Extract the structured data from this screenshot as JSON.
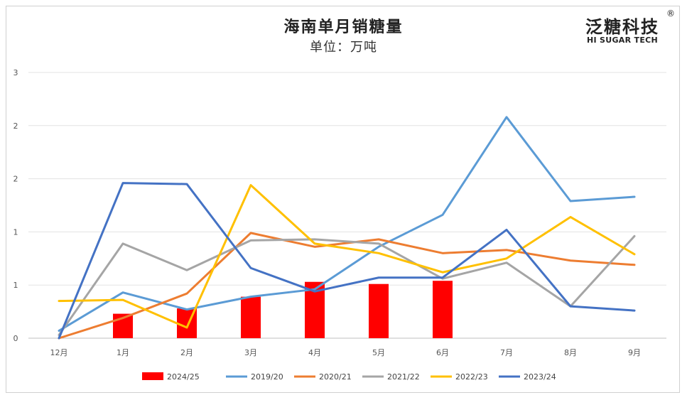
{
  "logo": {
    "cn": "泛糖科技",
    "en": "HI SUGAR TECH",
    "reg": "®"
  },
  "chart_data": {
    "type": "bar",
    "title": "海南单月销糖量",
    "subtitle": "单位：万吨",
    "categories": [
      "12月",
      "1月",
      "2月",
      "3月",
      "4月",
      "5月",
      "6月",
      "7月",
      "8月",
      "9月"
    ],
    "y_tick_labels": [
      "0",
      "1",
      "1",
      "2",
      "2",
      "3"
    ],
    "ylim": [
      0,
      2.5
    ],
    "grid": true,
    "legend_position": "bottom",
    "series": [
      {
        "name": "2024/25",
        "kind": "bar",
        "color": "#ff0000",
        "values": [
          null,
          0.23,
          0.28,
          0.39,
          0.53,
          0.51,
          0.54,
          null,
          null,
          null
        ]
      },
      {
        "name": "2019/20",
        "kind": "line",
        "color": "#5b9bd5",
        "values": [
          0.07,
          0.43,
          0.27,
          0.39,
          0.46,
          0.86,
          1.16,
          2.08,
          1.29,
          1.33
        ]
      },
      {
        "name": "2020/21",
        "kind": "line",
        "color": "#ed7d31",
        "values": [
          0.0,
          0.19,
          0.42,
          0.99,
          0.86,
          0.93,
          0.8,
          0.83,
          0.73,
          0.69
        ]
      },
      {
        "name": "2021/22",
        "kind": "line",
        "color": "#a5a5a5",
        "values": [
          0.03,
          0.89,
          0.64,
          0.92,
          0.93,
          0.89,
          0.56,
          0.71,
          0.3,
          0.96
        ]
      },
      {
        "name": "2022/23",
        "kind": "line",
        "color": "#ffc000",
        "values": [
          0.35,
          0.36,
          0.1,
          1.44,
          0.89,
          0.8,
          0.62,
          0.75,
          1.14,
          0.79
        ]
      },
      {
        "name": "2023/24",
        "kind": "line",
        "color": "#4472c4",
        "values": [
          0.0,
          1.46,
          1.45,
          0.66,
          0.44,
          0.57,
          0.57,
          1.02,
          0.3,
          0.26
        ]
      }
    ]
  }
}
